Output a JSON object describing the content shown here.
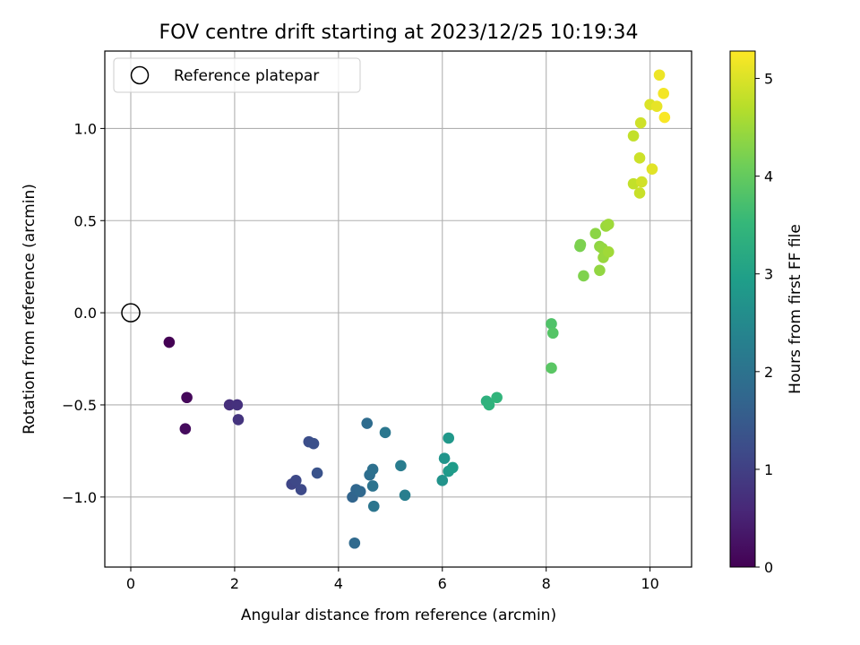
{
  "chart_data": {
    "type": "scatter",
    "title": "FOV centre drift starting at 2023/12/25 10:19:34",
    "xlabel": "Angular distance from reference (arcmin)",
    "ylabel": "Rotation from reference (arcmin)",
    "xlim": [
      -0.5,
      10.8
    ],
    "ylim": [
      -1.38,
      1.42
    ],
    "x_ticks": [
      0,
      2,
      4,
      6,
      8,
      10
    ],
    "y_ticks": [
      -1.0,
      -0.5,
      0.0,
      0.5,
      1.0
    ],
    "x_tick_labels": [
      "0",
      "2",
      "4",
      "6",
      "8",
      "10"
    ],
    "y_tick_labels": [
      "−1.0",
      "−0.5",
      "0.0",
      "0.5",
      "1.0"
    ],
    "grid": true,
    "legend": {
      "placement": "top-left",
      "entries": [
        "Reference platepar"
      ]
    },
    "colorbar": {
      "label": "Hours from first FF file",
      "range": [
        0,
        5.28
      ],
      "ticks": [
        0,
        1,
        2,
        3,
        4,
        5
      ],
      "tick_labels": [
        "0",
        "1",
        "2",
        "3",
        "4",
        "5"
      ],
      "colormap": "viridis"
    },
    "reference_point": {
      "x": 0,
      "y": 0
    },
    "series": [
      {
        "points": [
          {
            "x": 0.74,
            "y": -0.16,
            "c": 0.0
          },
          {
            "x": 1.08,
            "y": -0.46,
            "c": 0.1
          },
          {
            "x": 1.05,
            "y": -0.63,
            "c": 0.15
          },
          {
            "x": 1.9,
            "y": -0.5,
            "c": 0.7
          },
          {
            "x": 2.05,
            "y": -0.5,
            "c": 0.75
          },
          {
            "x": 2.07,
            "y": -0.58,
            "c": 0.8
          },
          {
            "x": 3.1,
            "y": -0.93,
            "c": 1.1
          },
          {
            "x": 3.18,
            "y": -0.91,
            "c": 1.15
          },
          {
            "x": 3.28,
            "y": -0.96,
            "c": 1.18
          },
          {
            "x": 3.43,
            "y": -0.7,
            "c": 1.25
          },
          {
            "x": 3.52,
            "y": -0.71,
            "c": 1.3
          },
          {
            "x": 3.59,
            "y": -0.87,
            "c": 1.35
          },
          {
            "x": 4.27,
            "y": -1.0,
            "c": 1.7
          },
          {
            "x": 4.34,
            "y": -0.96,
            "c": 1.75
          },
          {
            "x": 4.42,
            "y": -0.97,
            "c": 1.78
          },
          {
            "x": 4.31,
            "y": -1.25,
            "c": 1.8
          },
          {
            "x": 4.55,
            "y": -0.6,
            "c": 1.85
          },
          {
            "x": 4.6,
            "y": -0.88,
            "c": 1.9
          },
          {
            "x": 4.66,
            "y": -0.85,
            "c": 1.95
          },
          {
            "x": 4.66,
            "y": -0.94,
            "c": 2.0
          },
          {
            "x": 4.68,
            "y": -1.05,
            "c": 2.05
          },
          {
            "x": 4.9,
            "y": -0.65,
            "c": 2.1
          },
          {
            "x": 5.2,
            "y": -0.83,
            "c": 2.2
          },
          {
            "x": 5.28,
            "y": -0.99,
            "c": 2.25
          },
          {
            "x": 6.0,
            "y": -0.91,
            "c": 2.7
          },
          {
            "x": 6.04,
            "y": -0.79,
            "c": 2.75
          },
          {
            "x": 6.12,
            "y": -0.68,
            "c": 2.8
          },
          {
            "x": 6.12,
            "y": -0.86,
            "c": 2.85
          },
          {
            "x": 6.2,
            "y": -0.84,
            "c": 2.9
          },
          {
            "x": 6.85,
            "y": -0.48,
            "c": 3.35
          },
          {
            "x": 6.9,
            "y": -0.5,
            "c": 3.4
          },
          {
            "x": 7.05,
            "y": -0.46,
            "c": 3.45
          },
          {
            "x": 8.1,
            "y": -0.06,
            "c": 3.8
          },
          {
            "x": 8.13,
            "y": -0.11,
            "c": 3.85
          },
          {
            "x": 8.1,
            "y": -0.3,
            "c": 3.9
          },
          {
            "x": 8.65,
            "y": 0.36,
            "c": 4.2
          },
          {
            "x": 8.66,
            "y": 0.37,
            "c": 4.22
          },
          {
            "x": 8.72,
            "y": 0.2,
            "c": 4.25
          },
          {
            "x": 8.95,
            "y": 0.43,
            "c": 4.35
          },
          {
            "x": 9.03,
            "y": 0.36,
            "c": 4.38
          },
          {
            "x": 9.03,
            "y": 0.23,
            "c": 4.4
          },
          {
            "x": 9.08,
            "y": 0.35,
            "c": 4.42
          },
          {
            "x": 9.1,
            "y": 0.3,
            "c": 4.45
          },
          {
            "x": 9.15,
            "y": 0.47,
            "c": 4.47
          },
          {
            "x": 9.2,
            "y": 0.48,
            "c": 4.5
          },
          {
            "x": 9.2,
            "y": 0.33,
            "c": 4.52
          },
          {
            "x": 9.68,
            "y": 0.96,
            "c": 4.8
          },
          {
            "x": 9.68,
            "y": 0.7,
            "c": 4.8
          },
          {
            "x": 9.8,
            "y": 0.65,
            "c": 4.85
          },
          {
            "x": 9.8,
            "y": 0.84,
            "c": 4.88
          },
          {
            "x": 9.82,
            "y": 1.03,
            "c": 4.9
          },
          {
            "x": 9.84,
            "y": 0.71,
            "c": 4.92
          },
          {
            "x": 10.0,
            "y": 1.13,
            "c": 5.0
          },
          {
            "x": 10.04,
            "y": 0.78,
            "c": 5.05
          },
          {
            "x": 10.13,
            "y": 1.12,
            "c": 5.1
          },
          {
            "x": 10.18,
            "y": 1.29,
            "c": 5.15
          },
          {
            "x": 10.26,
            "y": 1.19,
            "c": 5.2
          },
          {
            "x": 10.28,
            "y": 1.06,
            "c": 5.25
          }
        ]
      }
    ]
  }
}
